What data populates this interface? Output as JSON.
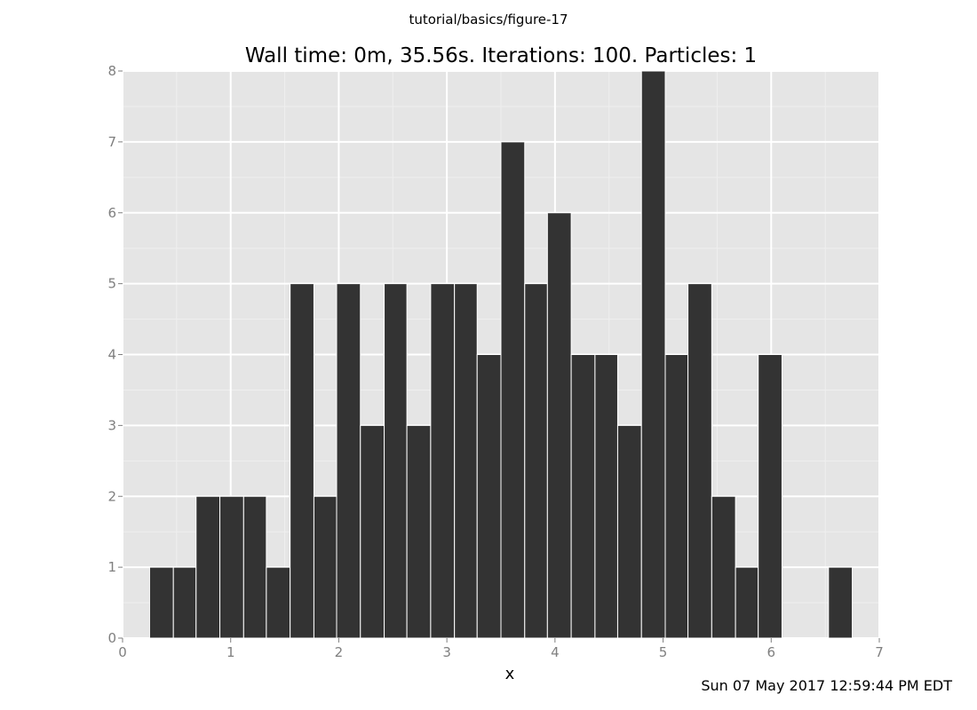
{
  "header": {
    "figure_label": "tutorial/basics/figure-17"
  },
  "footer": {
    "timestamp": "Sun 07 May 2017 12:59:44 PM EDT"
  },
  "colors": {
    "panel_bg": "#e5e5e5",
    "grid_major": "#ffffff",
    "grid_minor": "#efefef",
    "bar_fill": "#333333",
    "bar_edge": "#ffffff",
    "tick_text": "#7f7f7f",
    "text": "#000000"
  },
  "chart_data": {
    "type": "bar",
    "title": "Wall time: 0m, 35.56s. Iterations: 100. Particles: 1",
    "xlabel": "x",
    "ylabel": "",
    "xlim": [
      0,
      7
    ],
    "ylim": [
      0,
      8
    ],
    "xticks": [
      0,
      1,
      2,
      3,
      4,
      5,
      6,
      7
    ],
    "yticks": [
      0,
      1,
      2,
      3,
      4,
      5,
      6,
      7,
      8
    ],
    "grid": true,
    "bins": [
      {
        "x0": 0.25,
        "x1": 0.47,
        "count": 1
      },
      {
        "x0": 0.47,
        "x1": 0.68,
        "count": 1
      },
      {
        "x0": 0.68,
        "x1": 0.9,
        "count": 2
      },
      {
        "x0": 0.9,
        "x1": 1.12,
        "count": 2
      },
      {
        "x0": 1.12,
        "x1": 1.33,
        "count": 2
      },
      {
        "x0": 1.33,
        "x1": 1.55,
        "count": 1
      },
      {
        "x0": 1.55,
        "x1": 1.77,
        "count": 5
      },
      {
        "x0": 1.77,
        "x1": 1.98,
        "count": 2
      },
      {
        "x0": 1.98,
        "x1": 2.2,
        "count": 5
      },
      {
        "x0": 2.2,
        "x1": 2.42,
        "count": 3
      },
      {
        "x0": 2.42,
        "x1": 2.63,
        "count": 5
      },
      {
        "x0": 2.63,
        "x1": 2.85,
        "count": 3
      },
      {
        "x0": 2.85,
        "x1": 3.07,
        "count": 5
      },
      {
        "x0": 3.07,
        "x1": 3.28,
        "count": 5
      },
      {
        "x0": 3.28,
        "x1": 3.5,
        "count": 4
      },
      {
        "x0": 3.5,
        "x1": 3.72,
        "count": 7
      },
      {
        "x0": 3.72,
        "x1": 3.93,
        "count": 5
      },
      {
        "x0": 3.93,
        "x1": 4.15,
        "count": 6
      },
      {
        "x0": 4.15,
        "x1": 4.37,
        "count": 4
      },
      {
        "x0": 4.37,
        "x1": 4.58,
        "count": 4
      },
      {
        "x0": 4.58,
        "x1": 4.8,
        "count": 3
      },
      {
        "x0": 4.8,
        "x1": 5.02,
        "count": 8
      },
      {
        "x0": 5.02,
        "x1": 5.23,
        "count": 4
      },
      {
        "x0": 5.23,
        "x1": 5.45,
        "count": 5
      },
      {
        "x0": 5.45,
        "x1": 5.67,
        "count": 2
      },
      {
        "x0": 5.67,
        "x1": 5.88,
        "count": 1
      },
      {
        "x0": 5.88,
        "x1": 6.1,
        "count": 4
      },
      {
        "x0": 6.1,
        "x1": 6.32,
        "count": 0
      },
      {
        "x0": 6.32,
        "x1": 6.53,
        "count": 0
      },
      {
        "x0": 6.53,
        "x1": 6.75,
        "count": 1
      }
    ]
  }
}
